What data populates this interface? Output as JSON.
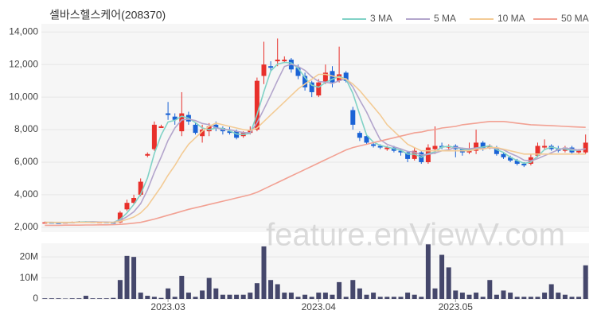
{
  "chart_data": [
    {
      "type": "candlestick",
      "title": "셀바스헬스케어(208370)",
      "watermark": "feature.enViewV.com",
      "ylim": [
        1700,
        14500
      ],
      "yticks": [
        {
          "value": 2000,
          "label": "2,000"
        },
        {
          "value": 4000,
          "label": "4,000"
        },
        {
          "value": 6000,
          "label": "6,000"
        },
        {
          "value": 8000,
          "label": "8,000"
        },
        {
          "value": 10000,
          "label": "10,000"
        },
        {
          "value": 12000,
          "label": "12,000"
        },
        {
          "value": 14000,
          "label": "14,000"
        }
      ],
      "grid": true,
      "legend": "top-right",
      "up_color": "#e8302b",
      "down_color": "#1a63d6",
      "open": [
        2280,
        2300,
        2280,
        2250,
        2300,
        2320,
        2350,
        2330,
        2300,
        2320,
        2300,
        2300,
        3100,
        3500,
        4000,
        6400,
        6800,
        8100,
        9000,
        8800,
        7900,
        8900,
        8300,
        7600,
        7900,
        8300,
        8100,
        7900,
        7900,
        7600,
        7800,
        8000,
        11300,
        11900,
        12200,
        12200,
        12300,
        11800,
        11300,
        10900,
        10100,
        10900,
        11600,
        11000,
        11500,
        9200,
        7800,
        7600,
        7100,
        7000,
        6800,
        6900,
        6700,
        6600,
        6200,
        6600,
        6000,
        6800,
        7000,
        6900,
        7000,
        6800,
        6600,
        6700,
        7200,
        6900,
        6900,
        6500,
        6300,
        6100,
        5900,
        5900,
        6400,
        6900,
        7000,
        6800,
        6700,
        6900,
        6600,
        6600
      ],
      "high": [
        2350,
        2320,
        2300,
        2330,
        2350,
        2380,
        2370,
        2340,
        2350,
        2330,
        2310,
        3000,
        3700,
        4000,
        5000,
        6600,
        8500,
        8300,
        9700,
        9000,
        10300,
        9100,
        8400,
        8300,
        8400,
        8500,
        8200,
        8200,
        8000,
        7900,
        8200,
        11200,
        13400,
        12200,
        13600,
        12500,
        12400,
        12000,
        11500,
        11000,
        11100,
        12000,
        11900,
        13100,
        11600,
        9400,
        7900,
        7700,
        7200,
        7100,
        7000,
        7000,
        6800,
        6700,
        6900,
        6700,
        7100,
        8200,
        7200,
        7100,
        7100,
        6900,
        7200,
        8000,
        7300,
        7100,
        7000,
        6600,
        6400,
        6200,
        6000,
        6500,
        7200,
        7400,
        7100,
        7000,
        7000,
        7000,
        6800,
        7700
      ],
      "low": [
        2250,
        2260,
        2230,
        2240,
        2290,
        2300,
        2310,
        2280,
        2290,
        2280,
        2230,
        2250,
        3000,
        3400,
        3900,
        6300,
        6700,
        8100,
        8600,
        8300,
        7600,
        8300,
        7700,
        7200,
        7600,
        7900,
        7700,
        7700,
        7400,
        7500,
        7700,
        7900,
        10800,
        11600,
        11900,
        12100,
        11500,
        11100,
        10400,
        10000,
        10000,
        10800,
        10600,
        10900,
        10900,
        8000,
        7300,
        7100,
        6900,
        6800,
        6700,
        6600,
        6400,
        6000,
        6100,
        5900,
        5900,
        6500,
        6800,
        6800,
        6300,
        6400,
        6500,
        6500,
        6700,
        6800,
        6400,
        6200,
        6000,
        5800,
        5700,
        5800,
        6300,
        6800,
        6700,
        6600,
        6600,
        6500,
        6500,
        6500
      ],
      "close": [
        2300,
        2280,
        2250,
        2300,
        2320,
        2350,
        2330,
        2300,
        2320,
        2300,
        2250,
        2900,
        3500,
        3800,
        4800,
        6500,
        8300,
        8200,
        8900,
        8600,
        9000,
        8500,
        7800,
        8000,
        8200,
        8100,
        7900,
        7800,
        7500,
        7800,
        8000,
        11000,
        12000,
        11800,
        12300,
        12300,
        11700,
        11300,
        10600,
        10300,
        10900,
        11500,
        10900,
        11400,
        11000,
        8300,
        7500,
        7200,
        7000,
        6900,
        6900,
        6700,
        6600,
        6200,
        6700,
        6000,
        6900,
        7000,
        6900,
        7000,
        6800,
        6600,
        6800,
        7200,
        6800,
        7000,
        6500,
        6300,
        6100,
        5900,
        5800,
        6300,
        7000,
        7000,
        6800,
        6700,
        6900,
        6600,
        6700,
        7200
      ],
      "series": [
        {
          "name": "3 MA",
          "color": "#80d2c6",
          "values": [
            2300,
            2290,
            2280,
            2280,
            2290,
            2320,
            2330,
            2330,
            2320,
            2310,
            2290,
            2480,
            2880,
            3400,
            4030,
            5030,
            6530,
            7670,
            8470,
            8570,
            8830,
            8700,
            8430,
            8100,
            8000,
            8100,
            8070,
            7930,
            7730,
            7700,
            7770,
            8930,
            10330,
            11600,
            12030,
            12130,
            12100,
            11770,
            11200,
            10730,
            10600,
            10900,
            11100,
            11270,
            11100,
            10230,
            8930,
            7670,
            7230,
            7030,
            6930,
            6830,
            6730,
            6500,
            6500,
            6300,
            6530,
            6630,
            6930,
            6970,
            6900,
            6800,
            6730,
            6870,
            6930,
            7000,
            6770,
            6600,
            6300,
            6100,
            5930,
            6000,
            6370,
            6770,
            6930,
            6830,
            6800,
            6730,
            6730,
            6830
          ]
        },
        {
          "name": "5 MA",
          "color": "#b3a5cc",
          "values": [
            2300,
            2300,
            2290,
            2290,
            2290,
            2300,
            2310,
            2330,
            2320,
            2320,
            2300,
            2410,
            2650,
            2950,
            3450,
            4300,
            5380,
            6320,
            7340,
            8100,
            8600,
            8640,
            8560,
            8380,
            8300,
            8120,
            8000,
            8000,
            7900,
            7820,
            7800,
            8420,
            9260,
            10120,
            11020,
            11880,
            12020,
            11880,
            11640,
            11240,
            10960,
            10920,
            10840,
            11000,
            11140,
            10620,
            9820,
            9080,
            8200,
            7380,
            7100,
            6940,
            6820,
            6660,
            6620,
            6440,
            6480,
            6560,
            6700,
            6760,
            6920,
            6860,
            6820,
            6880,
            6840,
            6880,
            6860,
            6760,
            6540,
            6360,
            6120,
            6080,
            6220,
            6400,
            6580,
            6760,
            6880,
            6800,
            6740,
            6820
          ]
        },
        {
          "name": "10 MA",
          "color": "#f3cb95",
          "values": [
            2300,
            2300,
            2300,
            2300,
            2300,
            2300,
            2300,
            2300,
            2300,
            2300,
            2300,
            2360,
            2480,
            2630,
            2880,
            3300,
            3900,
            4500,
            5200,
            5800,
            6500,
            7100,
            7500,
            7900,
            8200,
            8400,
            8300,
            8200,
            8100,
            8000,
            7950,
            8100,
            8500,
            8900,
            9300,
            9700,
            10100,
            10500,
            10800,
            11100,
            11400,
            11400,
            11300,
            11200,
            11100,
            10800,
            10400,
            9900,
            9400,
            8900,
            8300,
            7900,
            7500,
            7100,
            6900,
            6700,
            6700,
            6700,
            6700,
            6700,
            6700,
            6700,
            6700,
            6800,
            6800,
            6900,
            6900,
            6800,
            6700,
            6600,
            6500,
            6500,
            6500,
            6500,
            6500,
            6500,
            6500,
            6500,
            6500,
            6500
          ]
        },
        {
          "name": "50 MA",
          "color": "#f2a193",
          "values": [
            2120,
            2120,
            2120,
            2130,
            2130,
            2130,
            2140,
            2140,
            2150,
            2150,
            2160,
            2180,
            2210,
            2250,
            2300,
            2400,
            2500,
            2620,
            2740,
            2860,
            2980,
            3100,
            3200,
            3300,
            3400,
            3500,
            3600,
            3700,
            3800,
            3900,
            4000,
            4150,
            4350,
            4550,
            4750,
            4950,
            5150,
            5350,
            5550,
            5750,
            5950,
            6150,
            6350,
            6550,
            6750,
            6900,
            7000,
            7100,
            7200,
            7300,
            7400,
            7500,
            7600,
            7700,
            7800,
            7850,
            7950,
            8000,
            8100,
            8150,
            8200,
            8300,
            8350,
            8400,
            8450,
            8500,
            8500,
            8500,
            8450,
            8400,
            8350,
            8300,
            8280,
            8260,
            8240,
            8220,
            8200,
            8180,
            8160,
            8140
          ]
        }
      ]
    },
    {
      "type": "bar",
      "color": "#45476b",
      "ylim": [
        0,
        26500000
      ],
      "yticks": [
        0,
        {
          "value": 10000000,
          "label": "10M"
        },
        {
          "value": 20000000,
          "label": "20M"
        }
      ],
      "grid": true,
      "categories": [
        null,
        null,
        null,
        null,
        null,
        null,
        null,
        null,
        null,
        null,
        null,
        null,
        null,
        null,
        null,
        null,
        null,
        null,
        "2023.03",
        null,
        null,
        null,
        null,
        null,
        null,
        null,
        null,
        null,
        null,
        null,
        null,
        null,
        null,
        null,
        null,
        null,
        null,
        null,
        null,
        null,
        "2023.04",
        null,
        null,
        null,
        null,
        null,
        null,
        null,
        null,
        null,
        null,
        null,
        null,
        null,
        null,
        null,
        null,
        null,
        null,
        null,
        "2023.05",
        null,
        null,
        null,
        null,
        null,
        null,
        null,
        null,
        null,
        null,
        null,
        null,
        null,
        null,
        null,
        null,
        null,
        null,
        null
      ],
      "values": [
        300000,
        300000,
        300000,
        200000,
        300000,
        300000,
        1500000,
        300000,
        300000,
        300000,
        500000,
        9000000,
        20500000,
        20000000,
        3000000,
        1500000,
        1000000,
        500000,
        5000000,
        1000000,
        11000000,
        3000000,
        1000000,
        4000000,
        10000000,
        5000000,
        2000000,
        2000000,
        2000000,
        2000000,
        3000000,
        7500000,
        25000000,
        9000000,
        7000000,
        3000000,
        3000000,
        1000000,
        2000000,
        1000000,
        3000000,
        3000000,
        2000000,
        8000000,
        1000000,
        9000000,
        5000000,
        2000000,
        3000000,
        1000000,
        1000000,
        1000000,
        1000000,
        3000000,
        2000000,
        1000000,
        26000000,
        5000000,
        21000000,
        15000000,
        4000000,
        3000000,
        2000000,
        3000000,
        1000000,
        9000000,
        2000000,
        4000000,
        3000000,
        1000000,
        1000000,
        1000000,
        1000000,
        3000000,
        7000000,
        3000000,
        2000000,
        1000000,
        1000000,
        16000000
      ]
    }
  ]
}
